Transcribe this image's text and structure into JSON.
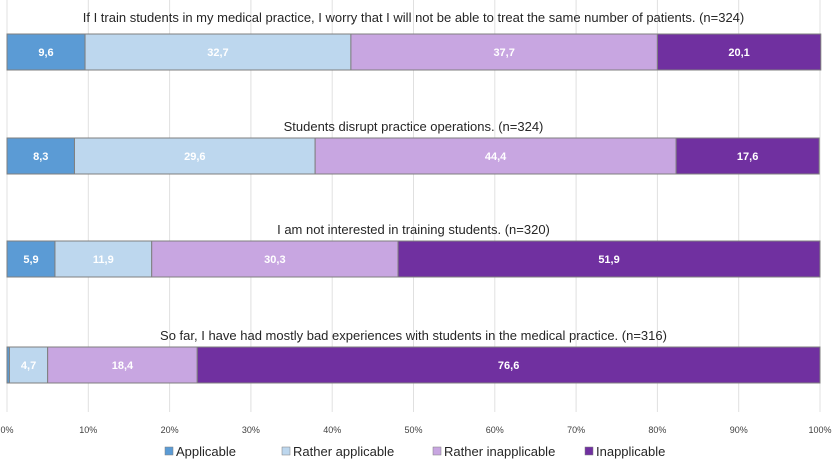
{
  "chart_data": {
    "type": "bar",
    "orientation": "horizontal",
    "stacked": true,
    "percent": true,
    "xlim": [
      0,
      100
    ],
    "xticks": [
      "0%",
      "10%",
      "20%",
      "30%",
      "40%",
      "50%",
      "60%",
      "70%",
      "80%",
      "90%",
      "100%"
    ],
    "grid": true,
    "legend_position": "bottom",
    "categories": [
      "If I train students in my medical practice, I worry that I will not be able to treat the same number of patients. (n=324)",
      "Students disrupt practice operations. (n=324)",
      "I am not interested in training students. (n=320)",
      "So far, I have had mostly bad experiences with students in the medical practice. (n=316)"
    ],
    "series": [
      {
        "name": "Applicable",
        "color": "#5b9bd5",
        "values": [
          9.6,
          8.3,
          5.9,
          0.3
        ],
        "labels": [
          "9,6",
          "8,3",
          "5,9",
          ""
        ]
      },
      {
        "name": "Rather applicable",
        "color": "#bdd7ee",
        "values": [
          32.7,
          29.6,
          11.9,
          4.7
        ],
        "labels": [
          "32,7",
          "29,6",
          "11,9",
          "4,7"
        ]
      },
      {
        "name": "Rather inapplicable",
        "color": "#c8a6e1",
        "values": [
          37.7,
          44.4,
          30.3,
          18.4
        ],
        "labels": [
          "37,7",
          "44,4",
          "30,3",
          "18,4"
        ]
      },
      {
        "name": "Inapplicable",
        "color": "#7030a0",
        "values": [
          20.1,
          17.6,
          51.9,
          76.6
        ],
        "labels": [
          "20,1",
          "17,6",
          "51,9",
          "76,6"
        ]
      }
    ]
  }
}
